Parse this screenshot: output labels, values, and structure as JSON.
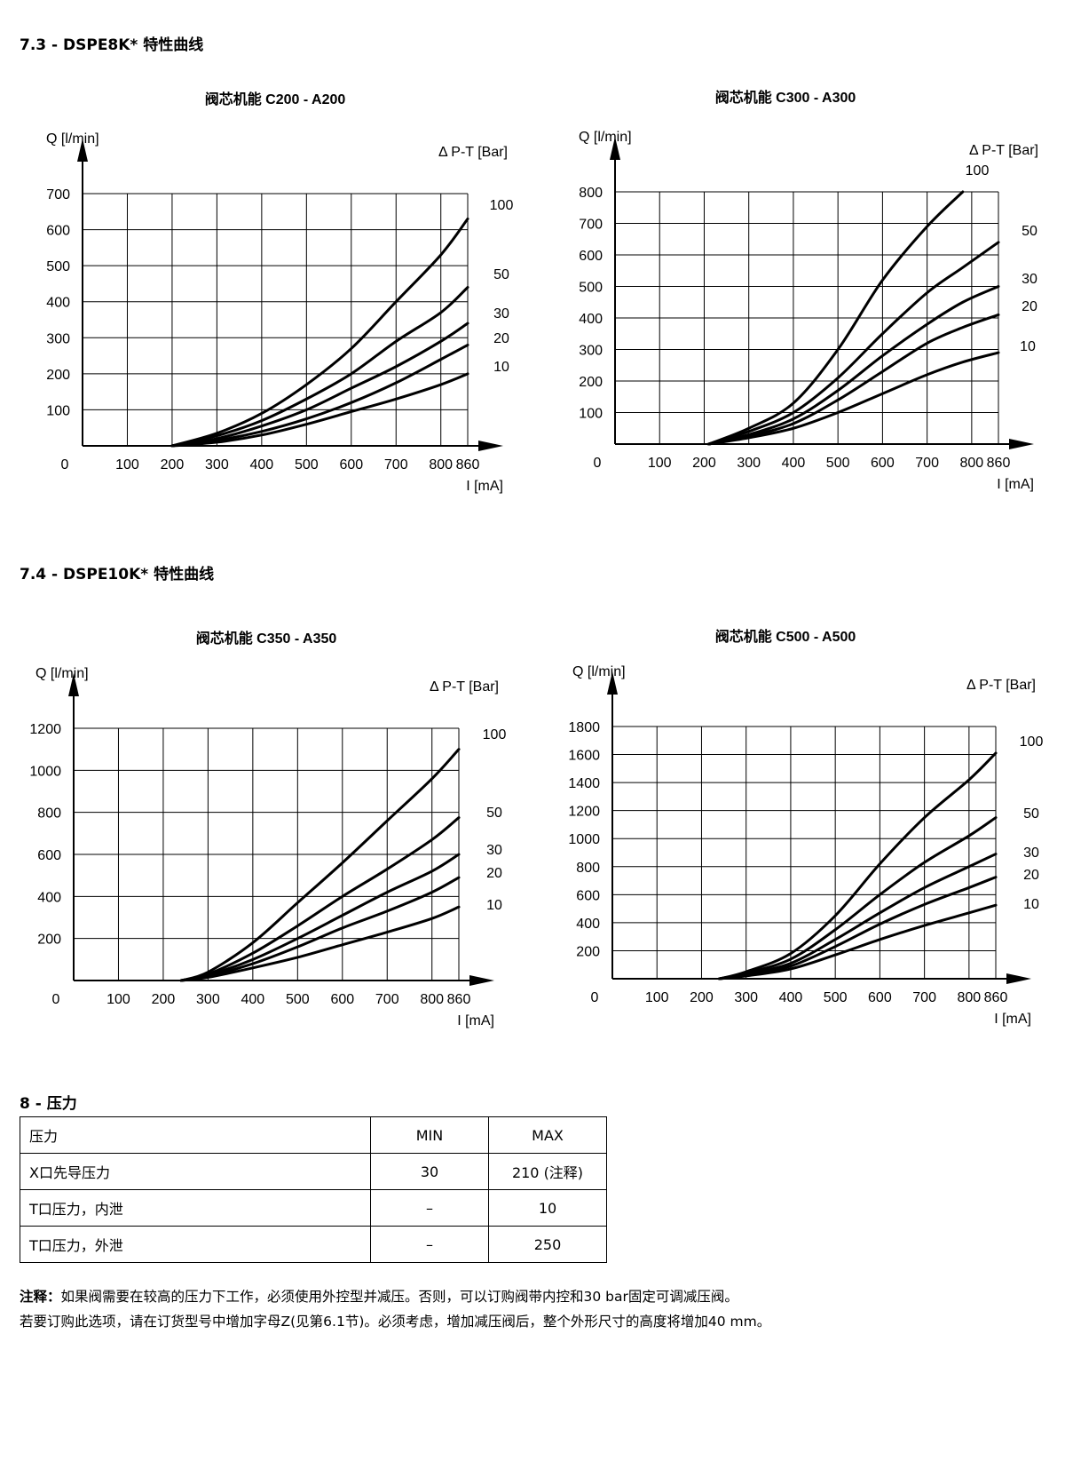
{
  "sections": {
    "s73": "7.3 - DSPE8K*  特性曲线",
    "s74": "7.4 - DSPE10K*  特性曲线",
    "s8": "8 - 压力"
  },
  "chart_data": [
    {
      "type": "line",
      "title": "阀芯机能 C200 - A200",
      "ylabel": "Q [l/min]",
      "xlabel": "I [mA]",
      "legend_title": "Δ P-T  [Bar]",
      "x_ticks": [
        "0",
        "100",
        "200",
        "300",
        "400",
        "500",
        "600",
        "700",
        "800",
        "860"
      ],
      "y_ticks": [
        "100",
        "200",
        "300",
        "400",
        "500",
        "600",
        "700"
      ],
      "xlim": [
        0,
        860
      ],
      "ylim": [
        0,
        700
      ],
      "x": [
        200,
        300,
        400,
        500,
        600,
        700,
        800,
        860
      ],
      "series": [
        {
          "name": "100",
          "values": [
            0,
            35,
            90,
            170,
            270,
            400,
            530,
            630
          ]
        },
        {
          "name": "50",
          "values": [
            0,
            28,
            70,
            130,
            200,
            290,
            370,
            440
          ]
        },
        {
          "name": "30",
          "values": [
            0,
            20,
            55,
            100,
            160,
            220,
            290,
            340
          ]
        },
        {
          "name": "20",
          "values": [
            0,
            15,
            40,
            75,
            120,
            175,
            240,
            280
          ]
        },
        {
          "name": "10",
          "values": [
            0,
            10,
            30,
            60,
            95,
            130,
            170,
            200
          ]
        }
      ]
    },
    {
      "type": "line",
      "title": "阀芯机能 C300 - A300",
      "ylabel": "Q [l/min]",
      "xlabel": "I [mA]",
      "legend_title": "Δ P-T  [Bar]",
      "x_ticks": [
        "0",
        "100",
        "200",
        "300",
        "400",
        "500",
        "600",
        "700",
        "800",
        "860"
      ],
      "y_ticks": [
        "100",
        "200",
        "300",
        "400",
        "500",
        "600",
        "700",
        "800"
      ],
      "xlim": [
        0,
        860
      ],
      "ylim": [
        0,
        800
      ],
      "x": [
        210,
        300,
        400,
        500,
        600,
        700,
        780,
        860
      ],
      "series": [
        {
          "name": "100",
          "values": [
            0,
            50,
            130,
            300,
            520,
            690,
            800,
            null
          ]
        },
        {
          "name": "50",
          "values": [
            0,
            40,
            100,
            210,
            350,
            480,
            560,
            640
          ]
        },
        {
          "name": "30",
          "values": [
            0,
            30,
            80,
            170,
            280,
            380,
            450,
            500
          ]
        },
        {
          "name": "20",
          "values": [
            0,
            25,
            65,
            140,
            230,
            320,
            370,
            410
          ]
        },
        {
          "name": "10",
          "values": [
            0,
            20,
            50,
            100,
            160,
            220,
            260,
            290
          ]
        }
      ]
    },
    {
      "type": "line",
      "title": "阀芯机能 C350 - A350",
      "ylabel": "Q [l/min]",
      "xlabel": "I [mA]",
      "legend_title": "Δ P-T  [Bar]",
      "x_ticks": [
        "0",
        "100",
        "200",
        "300",
        "400",
        "500",
        "600",
        "700",
        "800",
        "860"
      ],
      "y_ticks": [
        "200",
        "400",
        "600",
        "800",
        "1000",
        "1200"
      ],
      "xlim": [
        0,
        860
      ],
      "ylim": [
        0,
        1200
      ],
      "x": [
        240,
        300,
        400,
        500,
        600,
        700,
        800,
        860
      ],
      "series": [
        {
          "name": "100",
          "values": [
            0,
            40,
            180,
            370,
            560,
            760,
            960,
            1100
          ]
        },
        {
          "name": "50",
          "values": [
            0,
            30,
            130,
            260,
            400,
            530,
            670,
            775
          ]
        },
        {
          "name": "30",
          "values": [
            0,
            25,
            100,
            200,
            310,
            420,
            520,
            600
          ]
        },
        {
          "name": "20",
          "values": [
            0,
            20,
            80,
            160,
            250,
            330,
            420,
            490
          ]
        },
        {
          "name": "10",
          "values": [
            0,
            15,
            60,
            110,
            170,
            230,
            295,
            350
          ]
        }
      ]
    },
    {
      "type": "line",
      "title": "阀芯机能 C500 - A500",
      "ylabel": "Q [l/min]",
      "xlabel": "I [mA]",
      "legend_title": "Δ P-T  [Bar]",
      "x_ticks": [
        "0",
        "100",
        "200",
        "300",
        "400",
        "500",
        "600",
        "700",
        "800",
        "860"
      ],
      "y_ticks": [
        "200",
        "400",
        "600",
        "800",
        "1000",
        "1200",
        "1400",
        "1600",
        "1800"
      ],
      "xlim": [
        0,
        860
      ],
      "ylim": [
        0,
        1800
      ],
      "x": [
        240,
        300,
        400,
        500,
        600,
        700,
        800,
        860
      ],
      "series": [
        {
          "name": "100",
          "values": [
            0,
            50,
            180,
            450,
            820,
            1150,
            1420,
            1610
          ]
        },
        {
          "name": "50",
          "values": [
            0,
            40,
            140,
            350,
            600,
            830,
            1020,
            1150
          ]
        },
        {
          "name": "30",
          "values": [
            0,
            30,
            110,
            280,
            470,
            650,
            800,
            890
          ]
        },
        {
          "name": "20",
          "values": [
            0,
            25,
            90,
            230,
            390,
            530,
            650,
            725
          ]
        },
        {
          "name": "10",
          "values": [
            0,
            20,
            70,
            170,
            280,
            380,
            470,
            525
          ]
        }
      ]
    }
  ],
  "pressure_table": {
    "header": [
      "压力",
      "MIN",
      "MAX"
    ],
    "rows": [
      [
        "X口先导压力",
        "30",
        "210 (注释)"
      ],
      [
        "T口压力，内泄",
        "–",
        "10"
      ],
      [
        "T口压力，外泄",
        "–",
        "250"
      ]
    ]
  },
  "note": {
    "label": "注释：",
    "line1": "如果阀需要在较高的压力下工作，必须使用外控型并减压。否则，可以订购阀带内控和30 bar固定可调减压阀。",
    "line2": "若要订购此选项，请在订货型号中增加字母Z(见第6.1节)。必须考虑，增加减压阀后，整个外形尺寸的高度将增加40 mm。"
  }
}
